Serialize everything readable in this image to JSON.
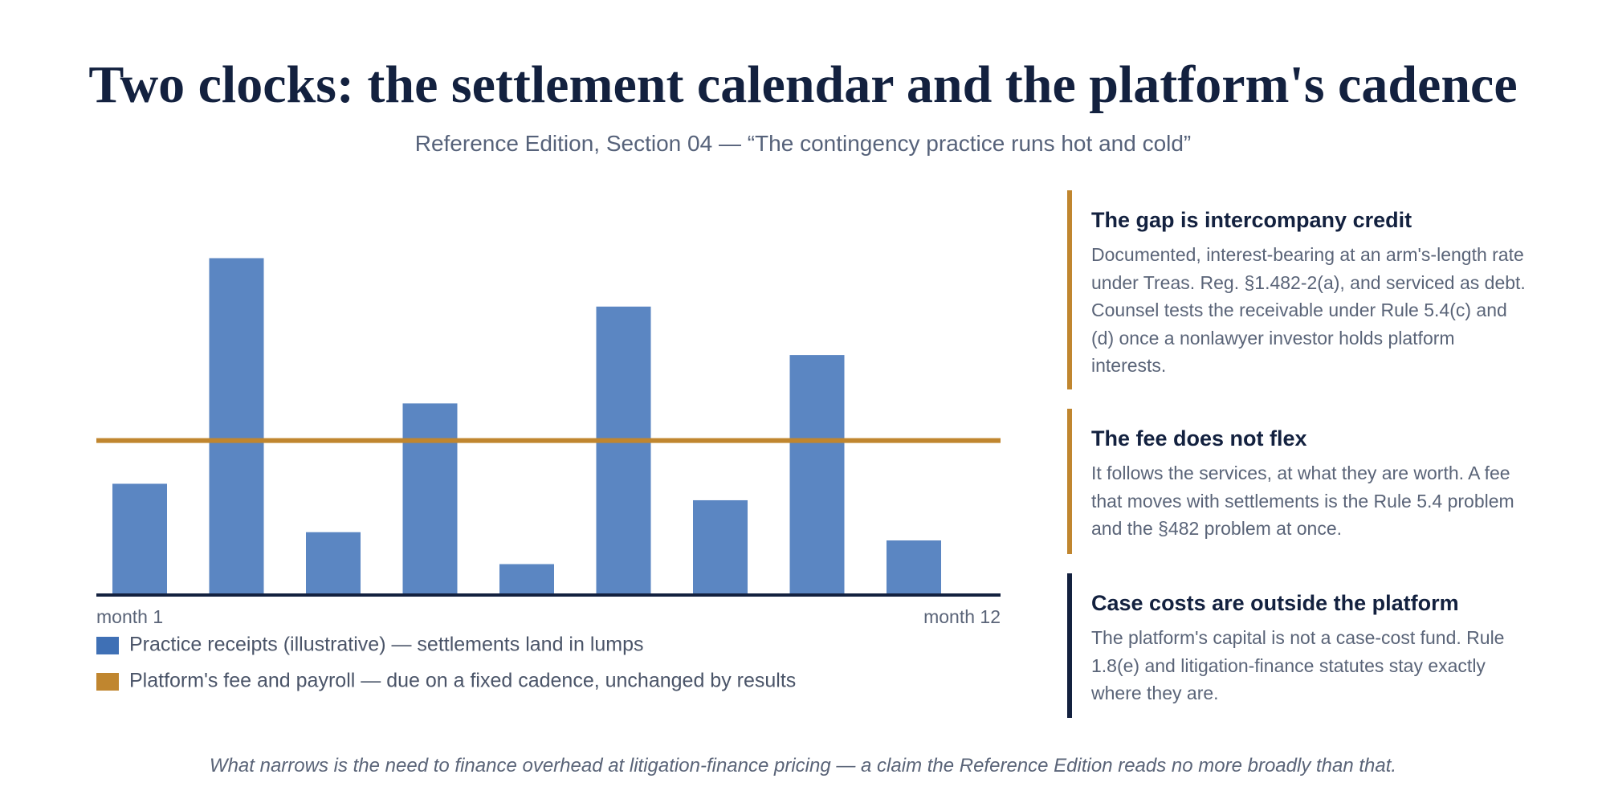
{
  "chart_data": {
    "type": "bar",
    "title": "Two clocks: the settlement calendar and the platform's cadence",
    "subtitle": "Reference Edition, Section 04 — “The contingency practice runs hot and cold”",
    "x_labels": [
      "month 1",
      "month 12"
    ],
    "series": [
      {
        "name": "Practice receipts (illustrative) — settlements land in lumps",
        "color": "#5b86c2",
        "legend_color": "#3f70b5",
        "values": [
          108,
          327,
          61,
          186,
          30,
          280,
          92,
          233,
          53
        ]
      },
      {
        "name": "Platform's fee and payroll — due on a fixed cadence, unchanged by results",
        "color": "#c0862f",
        "values": [
          150
        ]
      }
    ],
    "ylim": [
      0,
      350
    ]
  },
  "notes": [
    {
      "title": "The gap is intercompany credit",
      "body": "Documented, interest-bearing at an arm's-length rate under Treas. Reg. §1.482-2(a), and serviced as debt. Counsel tests the receivable under Rule 5.4(c) and (d) once a nonlawyer investor holds platform interests.",
      "color": "#c0862f"
    },
    {
      "title": "The fee does not flex",
      "body": "It follows the services, at what they are worth. A fee that moves with settlements is the Rule 5.4 problem and the §482 problem at once.",
      "color": "#c0862f"
    },
    {
      "title": "Case costs are outside the platform",
      "body": "The platform's capital is not a case-cost fund. Rule 1.8(e) and litigation-finance statutes stay exactly where they are.",
      "color": "#13213f"
    }
  ],
  "footer": "What narrows is the need to finance overhead at litigation-finance pricing — a claim the Reference Edition reads no more broadly than that."
}
